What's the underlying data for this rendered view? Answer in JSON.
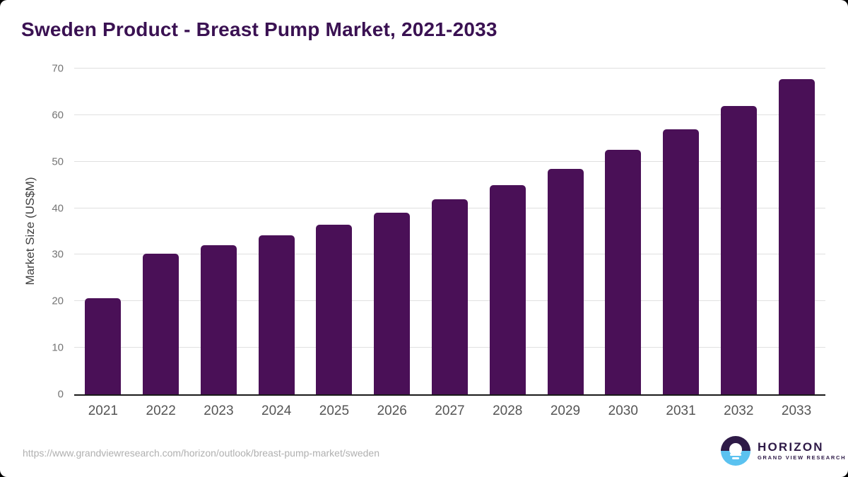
{
  "header": {
    "title": "Sweden Product - Breast Pump Market, 2021-2033"
  },
  "chart_data": {
    "type": "bar",
    "title": "Sweden Product - Breast Pump Market, 2021-2033",
    "categories": [
      "2021",
      "2022",
      "2023",
      "2024",
      "2025",
      "2026",
      "2027",
      "2028",
      "2029",
      "2030",
      "2031",
      "2032",
      "2033"
    ],
    "values": [
      20.7,
      30.2,
      32.0,
      34.1,
      36.4,
      39.0,
      41.9,
      45.0,
      48.5,
      52.5,
      57.0,
      62.0,
      67.8
    ],
    "xlabel": "",
    "ylabel": "Market Size (US$M)",
    "ylim": [
      0,
      70
    ],
    "yticks": [
      0,
      10,
      20,
      30,
      40,
      50,
      60,
      70
    ],
    "grid": true,
    "legend": false,
    "bar_color": "#4a1057"
  },
  "footer": {
    "source_url": "https://www.grandviewresearch.com/horizon/outlook/breast-pump-market/sweden",
    "logo": {
      "name": "HORIZON",
      "subtitle": "GRAND VIEW RESEARCH"
    }
  },
  "colors": {
    "title_text": "#3a1152",
    "bar": "#4a1057",
    "axis_line": "#1a1a1a",
    "gridline": "#e0e0e0",
    "tick_text": "#757575",
    "xlabel_text": "#555555",
    "url_text": "#b0b0b0",
    "logo_purple": "#2e1a47",
    "logo_blue": "#5bc2f0",
    "background": "#ffffff"
  }
}
